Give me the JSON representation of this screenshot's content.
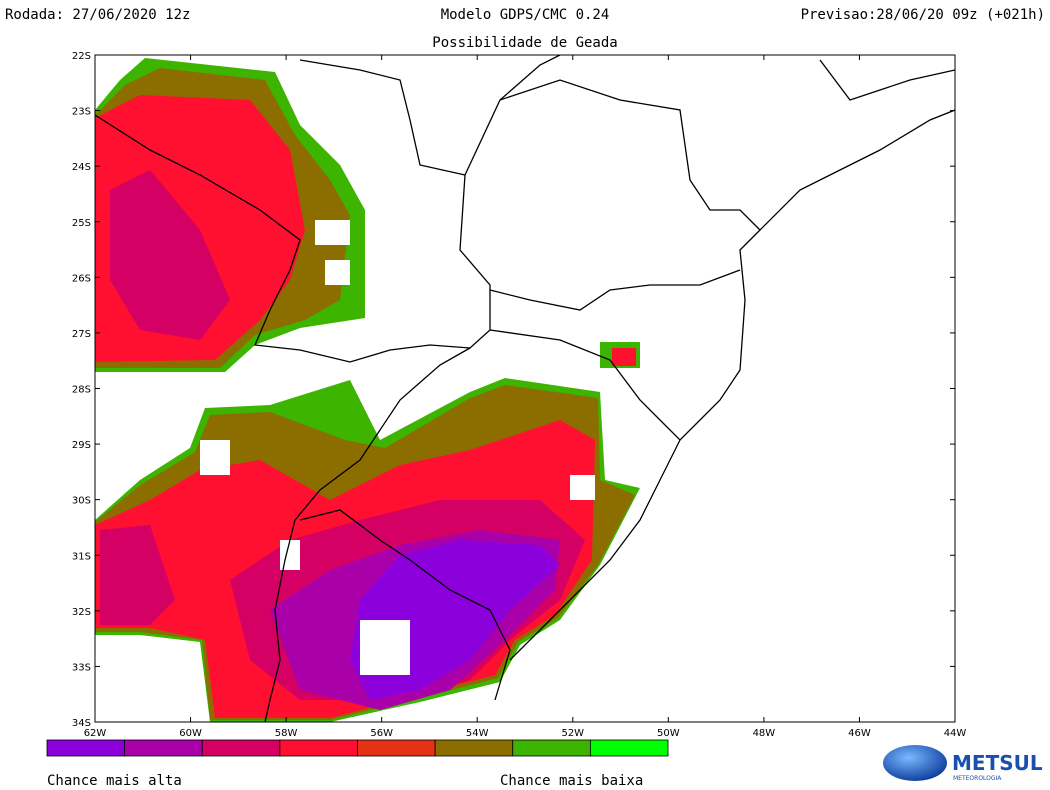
{
  "header": {
    "left": "Rodada: 27/06/2020 12z",
    "center": "Modelo GDPS/CMC 0.24",
    "right": "Previsao:28/06/20 09z (+021h)",
    "subtitle": "Possibilidade de Geada"
  },
  "map": {
    "lat_labels": [
      "22S",
      "23S",
      "24S",
      "25S",
      "26S",
      "27S",
      "28S",
      "29S",
      "30S",
      "31S",
      "32S",
      "33S",
      "34S"
    ],
    "lon_labels": [
      "62W",
      "60W",
      "58W",
      "56W",
      "54W",
      "52W",
      "50W",
      "48W",
      "46W",
      "44W"
    ]
  },
  "colorbar": {
    "colors": [
      "#8c00dc",
      "#aa00aa",
      "#d40064",
      "#ff1030",
      "#e63214",
      "#8c6e00",
      "#3cb400",
      "#00ff00"
    ],
    "high_label": "Chance mais alta",
    "low_label": "Chance mais baixa"
  },
  "logo": {
    "name": "METSUL",
    "tagline": "METEOROLOGIA"
  }
}
